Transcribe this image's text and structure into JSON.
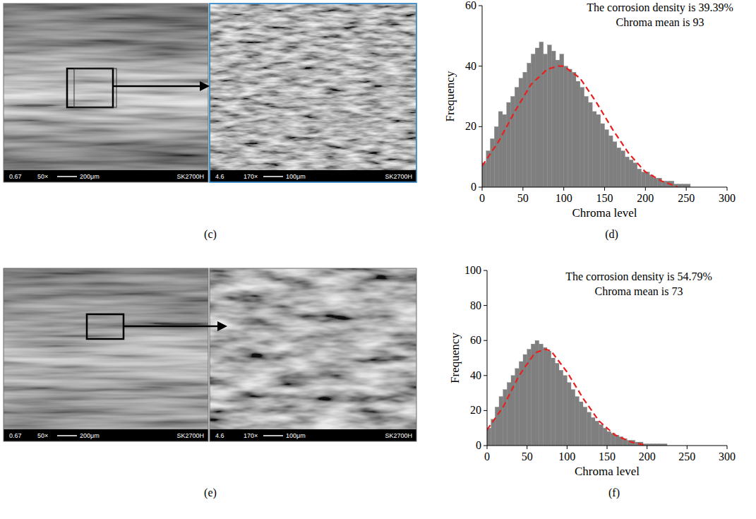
{
  "chart_data": [
    {
      "type": "histogram",
      "panel_label": "(d)",
      "x_label": "Chroma level",
      "y_label": "Frequency",
      "annotations": [
        "The corrosion density is 39.39%",
        "Chroma mean is 93"
      ],
      "xlim": [
        0,
        300
      ],
      "xticks": [
        0,
        50,
        100,
        150,
        200,
        250,
        300
      ],
      "ylim": [
        0,
        60
      ],
      "yticks": [
        0,
        20,
        40,
        60
      ],
      "color": "#7f7f7f",
      "bins": [
        0,
        5,
        10,
        15,
        20,
        25,
        30,
        35,
        40,
        45,
        50,
        55,
        60,
        65,
        70,
        75,
        80,
        85,
        90,
        95,
        100,
        105,
        110,
        115,
        120,
        125,
        130,
        135,
        140,
        145,
        150,
        155,
        160,
        165,
        170,
        175,
        180,
        185,
        190,
        195,
        200,
        205,
        210,
        215,
        220,
        225,
        230,
        235,
        240,
        245,
        250,
        255
      ],
      "counts": [
        8,
        12,
        16,
        20,
        25,
        24,
        28,
        30,
        33,
        36,
        38,
        41,
        44,
        46,
        48,
        44,
        47,
        45,
        42,
        44,
        40,
        39,
        38,
        35,
        33,
        30,
        28,
        25,
        24,
        21,
        19,
        17,
        15,
        13,
        12,
        10,
        9,
        8,
        6,
        5,
        5,
        4,
        3,
        3,
        2,
        2,
        2,
        1,
        1,
        1,
        1
      ],
      "fit": {
        "type": "line",
        "line_style": "dashed",
        "color": "#e8201e",
        "x": [
          0,
          20,
          40,
          60,
          80,
          93,
          100,
          120,
          140,
          160,
          180,
          200,
          220,
          240
        ],
        "values": [
          7,
          15,
          25,
          34,
          39,
          40,
          40,
          36,
          28,
          19,
          11,
          5,
          2,
          0
        ]
      }
    },
    {
      "type": "histogram",
      "panel_label": "(f)",
      "x_label": "Chroma level",
      "y_label": "Frequency",
      "annotations": [
        "The corrosion density is 54.79%",
        "Chroma mean is 73"
      ],
      "xlim": [
        0,
        300
      ],
      "xticks": [
        0,
        50,
        100,
        150,
        200,
        250,
        300
      ],
      "ylim": [
        0,
        100
      ],
      "yticks": [
        0,
        20,
        40,
        60,
        80,
        100
      ],
      "color": "#7f7f7f",
      "bins": [
        0,
        5,
        10,
        15,
        20,
        25,
        30,
        35,
        40,
        45,
        50,
        55,
        60,
        65,
        70,
        75,
        80,
        85,
        90,
        95,
        100,
        105,
        110,
        115,
        120,
        125,
        130,
        135,
        140,
        145,
        150,
        155,
        160,
        165,
        170,
        175,
        180,
        185,
        190,
        195,
        200,
        205,
        210,
        215,
        220,
        225,
        230,
        235,
        240,
        245,
        250,
        255
      ],
      "counts": [
        10,
        15,
        22,
        28,
        32,
        36,
        40,
        44,
        48,
        52,
        55,
        58,
        60,
        58,
        56,
        54,
        50,
        47,
        43,
        40,
        36,
        32,
        28,
        25,
        22,
        19,
        16,
        14,
        12,
        10,
        8,
        7,
        6,
        5,
        4,
        3,
        3,
        2,
        2,
        1,
        1,
        1,
        1,
        1,
        1,
        0,
        0,
        0,
        0,
        0,
        0
      ],
      "fit": {
        "type": "line",
        "line_style": "dashed",
        "color": "#e8201e",
        "x": [
          0,
          20,
          40,
          60,
          73,
          80,
          100,
          120,
          140,
          160,
          180,
          200
        ],
        "values": [
          9,
          22,
          40,
          53,
          55,
          54,
          42,
          27,
          14,
          6,
          2,
          0
        ]
      }
    }
  ],
  "micrographs": [
    {
      "panel_label": "(c)",
      "overview": {
        "caption": [
          "0.67",
          "50×",
          "200μm",
          "SK2700H"
        ]
      },
      "detail": {
        "caption": [
          "4.6",
          "170×",
          "100μm",
          "SK2700H"
        ]
      }
    },
    {
      "panel_label": "(e)",
      "overview": {
        "caption": [
          "0.67",
          "50×",
          "200μm",
          "SK2700H"
        ]
      },
      "detail": {
        "caption": [
          "4.6",
          "170×",
          "100μm",
          "SK2700H"
        ]
      }
    }
  ]
}
